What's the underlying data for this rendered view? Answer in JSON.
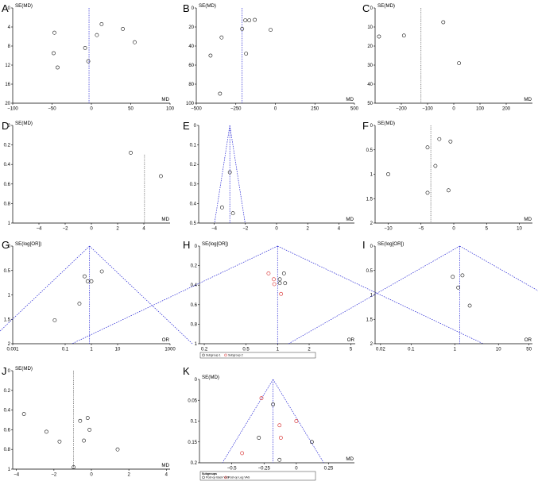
{
  "figure": {
    "title": ""
  },
  "chart_data": [
    {
      "id": "A",
      "panel": "A",
      "type": "scatter",
      "ylabel": "SE(MD)",
      "xlabel": "MD",
      "xlim": [
        -100,
        100
      ],
      "ylim": [
        0,
        20
      ],
      "y_inverted": true,
      "xticks": [
        -100,
        -50,
        0,
        50,
        100
      ],
      "xtick_labels": [
        "−100",
        "−50",
        "0",
        "50",
        "100"
      ],
      "yticks": [
        0,
        4,
        8,
        12,
        16,
        20
      ],
      "ytick_labels": [
        "0",
        "4",
        "8",
        "12",
        "16",
        "20"
      ],
      "ref_x": -3,
      "ref_style": "blue",
      "funnel": false,
      "points": [
        {
          "x": -47,
          "y": 5.2
        },
        {
          "x": -48,
          "y": 9.5
        },
        {
          "x": -43,
          "y": 12.5
        },
        {
          "x": -8,
          "y": 8.4
        },
        {
          "x": -4,
          "y": 11.2
        },
        {
          "x": 7,
          "y": 5.7
        },
        {
          "x": 13,
          "y": 3.4
        },
        {
          "x": 40,
          "y": 4.4
        },
        {
          "x": 55,
          "y": 7.2
        }
      ]
    },
    {
      "id": "B",
      "panel": "B",
      "type": "scatter",
      "ylabel": "SE(MD)",
      "xlabel": "MD",
      "xlim": [
        -500,
        500
      ],
      "ylim": [
        0,
        100
      ],
      "y_inverted": true,
      "xticks": [
        -500,
        -250,
        0,
        250,
        500
      ],
      "xtick_labels": [
        "−500",
        "−250",
        "0",
        "250",
        "500"
      ],
      "yticks": [
        0,
        20,
        40,
        60,
        80,
        100
      ],
      "ytick_labels": [
        "0",
        "20",
        "40",
        "60",
        "80",
        "100"
      ],
      "ref_x": -210,
      "ref_style": "blue",
      "funnel": false,
      "points": [
        {
          "x": -190,
          "y": 13
        },
        {
          "x": -165,
          "y": 13
        },
        {
          "x": -130,
          "y": 12.5
        },
        {
          "x": -210,
          "y": 22
        },
        {
          "x": -30,
          "y": 23
        },
        {
          "x": -340,
          "y": 31
        },
        {
          "x": -185,
          "y": 48
        },
        {
          "x": -410,
          "y": 50
        },
        {
          "x": -350,
          "y": 90
        }
      ]
    },
    {
      "id": "C",
      "panel": "C",
      "type": "scatter",
      "ylabel": "SE(MD)",
      "xlabel": "MD",
      "xlim": [
        -300,
        300
      ],
      "ylim": [
        0,
        50
      ],
      "y_inverted": true,
      "xticks": [
        -200,
        -100,
        0,
        100,
        200
      ],
      "xtick_labels": [
        "−200",
        "−100",
        "0",
        "100",
        "200"
      ],
      "yticks": [
        0,
        10,
        20,
        30,
        40,
        50
      ],
      "ytick_labels": [
        "0",
        "10",
        "20",
        "30",
        "40",
        "50"
      ],
      "ref_x": -125,
      "ref_style": "gray",
      "funnel": false,
      "points": [
        {
          "x": -285,
          "y": 15
        },
        {
          "x": -190,
          "y": 14.5
        },
        {
          "x": -40,
          "y": 7.5
        },
        {
          "x": 20,
          "y": 29
        }
      ]
    },
    {
      "id": "D",
      "panel": "D",
      "type": "scatter",
      "ylabel": "SE(MD)",
      "xlabel": "MD",
      "xlim": [
        -6,
        6
      ],
      "ylim": [
        0,
        1
      ],
      "y_inverted": true,
      "xticks": [
        -4,
        -2,
        0,
        2,
        4
      ],
      "xtick_labels": [
        "−4",
        "−2",
        "0",
        "2",
        "4"
      ],
      "yticks": [
        0,
        0.2,
        0.4,
        0.6,
        0.8,
        1
      ],
      "ytick_labels": [
        "0",
        "0.2",
        "0.4",
        "0.6",
        "0.8",
        "1"
      ],
      "ref_x": 4.05,
      "ref_style": "gray",
      "funnel": false,
      "ref_from": 0.3,
      "points": [
        {
          "x": 3.0,
          "y": 0.28
        },
        {
          "x": 5.3,
          "y": 0.52
        }
      ]
    },
    {
      "id": "E",
      "panel": "E",
      "type": "scatter",
      "ylabel": "",
      "xlabel": "MD",
      "xlim": [
        -5,
        5
      ],
      "ylim": [
        0,
        0.5
      ],
      "y_inverted": true,
      "xticks": [
        -4,
        -2,
        0,
        2,
        4
      ],
      "xtick_labels": [
        "−4",
        "−2",
        "0",
        "2",
        "4"
      ],
      "yticks": [
        0,
        0.1,
        0.2,
        0.3,
        0.4,
        0.5
      ],
      "ytick_labels": [
        "0",
        "0.1",
        "0.2",
        "0.3",
        "0.4",
        "0.5"
      ],
      "ref_x": -3.0,
      "ref_style": "blue",
      "funnel": true,
      "funnel_type": "linear",
      "points": [
        {
          "x": -3.0,
          "y": 0.24
        },
        {
          "x": -3.5,
          "y": 0.42
        },
        {
          "x": -2.8,
          "y": 0.45
        }
      ]
    },
    {
      "id": "F",
      "panel": "F",
      "type": "scatter",
      "ylabel": "SE(MD)",
      "xlabel": "MD",
      "xlim": [
        -12,
        12
      ],
      "ylim": [
        0,
        2
      ],
      "y_inverted": true,
      "xticks": [
        -10,
        -5,
        0,
        5,
        10
      ],
      "xtick_labels": [
        "−10",
        "−5",
        "0",
        "5",
        "10"
      ],
      "yticks": [
        0,
        0.5,
        1,
        1.5,
        2
      ],
      "ytick_labels": [
        "0",
        "0.5",
        "1",
        "1.5",
        "2"
      ],
      "ref_x": -3.5,
      "ref_style": "gray",
      "funnel": false,
      "points": [
        {
          "x": -2.2,
          "y": 0.28
        },
        {
          "x": -0.5,
          "y": 0.33
        },
        {
          "x": -4.0,
          "y": 0.45
        },
        {
          "x": -2.8,
          "y": 0.83
        },
        {
          "x": -10.0,
          "y": 1.0
        },
        {
          "x": -4.0,
          "y": 1.38
        },
        {
          "x": -0.8,
          "y": 1.33
        }
      ]
    },
    {
      "id": "G",
      "panel": "G",
      "type": "scatter",
      "ylabel": "SE(log[OR])",
      "xlabel": "OR",
      "xlim": [
        0.001,
        1000
      ],
      "x_log": true,
      "ylim": [
        0,
        2
      ],
      "y_inverted": true,
      "xticks": [
        0.001,
        0.1,
        1,
        10,
        1000
      ],
      "xtick_labels": [
        "0.001",
        "0.1",
        "1",
        "10",
        "1000"
      ],
      "yticks": [
        0,
        0.5,
        1,
        1.5,
        2
      ],
      "ytick_labels": [
        "0",
        "0.5",
        "1",
        "1.5",
        "2"
      ],
      "ref_x": 0.85,
      "ref_style": "blue",
      "funnel": true,
      "funnel_type": "log",
      "points": [
        {
          "x": 0.55,
          "y": 0.62
        },
        {
          "x": 0.72,
          "y": 0.72
        },
        {
          "x": 1.0,
          "y": 0.72
        },
        {
          "x": 2.5,
          "y": 0.52
        },
        {
          "x": 0.35,
          "y": 1.18
        },
        {
          "x": 0.04,
          "y": 1.52
        }
      ]
    },
    {
      "id": "H",
      "panel": "H",
      "type": "scatter",
      "ylabel": "SE(log[OR])",
      "xlabel": "OR",
      "xlim": [
        0.18,
        5.5
      ],
      "x_log": true,
      "ylim": [
        0,
        1
      ],
      "y_inverted": true,
      "xticks": [
        0.2,
        0.5,
        1,
        2,
        5
      ],
      "xtick_labels": [
        "0.2",
        "0.5",
        "1",
        "2",
        "5"
      ],
      "yticks": [
        0,
        0.2,
        0.4,
        0.6,
        0.8,
        1
      ],
      "ytick_labels": [
        "0",
        "0.2",
        "0.4",
        "0.6",
        "0.8",
        "1"
      ],
      "ref_x": 1.0,
      "ref_style": "blue",
      "funnel": true,
      "funnel_type": "log",
      "points": [
        {
          "x": 0.82,
          "y": 0.28,
          "group": "red"
        },
        {
          "x": 0.92,
          "y": 0.34,
          "group": "red"
        },
        {
          "x": 1.05,
          "y": 0.34
        },
        {
          "x": 1.15,
          "y": 0.28
        },
        {
          "x": 0.93,
          "y": 0.39,
          "group": "red"
        },
        {
          "x": 1.05,
          "y": 0.38
        },
        {
          "x": 1.18,
          "y": 0.38
        },
        {
          "x": 1.08,
          "y": 0.49,
          "group": "red"
        }
      ],
      "legend": {
        "items": [
          {
            "label": "Subgroup 1",
            "color": "#111111"
          },
          {
            "label": "Subgroup 2",
            "color": "#d62424"
          }
        ]
      }
    },
    {
      "id": "I",
      "panel": "I",
      "type": "scatter",
      "ylabel": "SE(log[OR])",
      "xlabel": "OR",
      "xlim": [
        0.015,
        60
      ],
      "x_log": true,
      "ylim": [
        0,
        2
      ],
      "y_inverted": true,
      "xticks": [
        0.02,
        0.1,
        1,
        10,
        50
      ],
      "xtick_labels": [
        "0.02",
        "0.1",
        "1",
        "10",
        "50"
      ],
      "yticks": [
        0,
        0.5,
        1,
        1.5,
        2
      ],
      "ytick_labels": [
        "0",
        "0.5",
        "1",
        "1.5",
        "2"
      ],
      "ref_x": 1.3,
      "ref_style": "blue",
      "funnel": true,
      "funnel_type": "log",
      "points": [
        {
          "x": 0.9,
          "y": 0.63
        },
        {
          "x": 1.5,
          "y": 0.6
        },
        {
          "x": 1.2,
          "y": 0.85
        },
        {
          "x": 2.2,
          "y": 1.22
        }
      ]
    },
    {
      "id": "J",
      "panel": "J",
      "type": "scatter",
      "ylabel": "SE(MD)",
      "xlabel": "MD",
      "xlim": [
        -4.2,
        4.2
      ],
      "ylim": [
        0,
        1
      ],
      "y_inverted": true,
      "xticks": [
        -4,
        -2,
        0,
        2,
        4
      ],
      "xtick_labels": [
        "−4",
        "−2",
        "0",
        "2",
        "4"
      ],
      "yticks": [
        0,
        0.2,
        0.4,
        0.6,
        0.8,
        1
      ],
      "ytick_labels": [
        "0",
        "0.2",
        "0.4",
        "0.6",
        "0.8",
        "1"
      ],
      "ref_x": -0.95,
      "ref_style": "gray",
      "funnel": false,
      "points": [
        {
          "x": -3.6,
          "y": 0.44
        },
        {
          "x": -2.4,
          "y": 0.62
        },
        {
          "x": -1.7,
          "y": 0.72
        },
        {
          "x": -0.6,
          "y": 0.51
        },
        {
          "x": -0.2,
          "y": 0.48
        },
        {
          "x": -0.1,
          "y": 0.6
        },
        {
          "x": -0.4,
          "y": 0.71
        },
        {
          "x": 1.4,
          "y": 0.8
        },
        {
          "x": -0.95,
          "y": 0.98
        }
      ]
    },
    {
      "id": "K",
      "panel": "K",
      "type": "scatter",
      "ylabel": "SE(MD)",
      "xlabel": "MD",
      "xlim": [
        -0.75,
        0.45
      ],
      "ylim": [
        0,
        0.2
      ],
      "y_inverted": true,
      "xticks": [
        -0.5,
        -0.25,
        0,
        0.25
      ],
      "xtick_labels": [
        "−0.5",
        "−0.25",
        "0",
        "0.25"
      ],
      "yticks": [
        0,
        0.05,
        0.1,
        0.15,
        0.2
      ],
      "ytick_labels": [
        "0",
        "0.05",
        "0.1",
        "0.15",
        "0.2"
      ],
      "ref_x": -0.18,
      "ref_style": "blue",
      "funnel": true,
      "funnel_type": "linear",
      "points": [
        {
          "x": -0.27,
          "y": 0.045,
          "group": "red"
        },
        {
          "x": -0.18,
          "y": 0.06
        },
        {
          "x": 0.0,
          "y": 0.1,
          "group": "red"
        },
        {
          "x": -0.13,
          "y": 0.11,
          "group": "red"
        },
        {
          "x": -0.12,
          "y": 0.14,
          "group": "red"
        },
        {
          "x": 0.12,
          "y": 0.15
        },
        {
          "x": -0.29,
          "y": 0.14
        },
        {
          "x": -0.42,
          "y": 0.177,
          "group": "red"
        },
        {
          "x": -0.13,
          "y": 0.193
        }
      ],
      "legend": {
        "title": "Subgroups",
        "items": [
          {
            "label": "Post-op Back VAS",
            "color": "#111111"
          },
          {
            "label": "Post-op Leg VAS",
            "color": "#d62424"
          }
        ]
      }
    }
  ]
}
